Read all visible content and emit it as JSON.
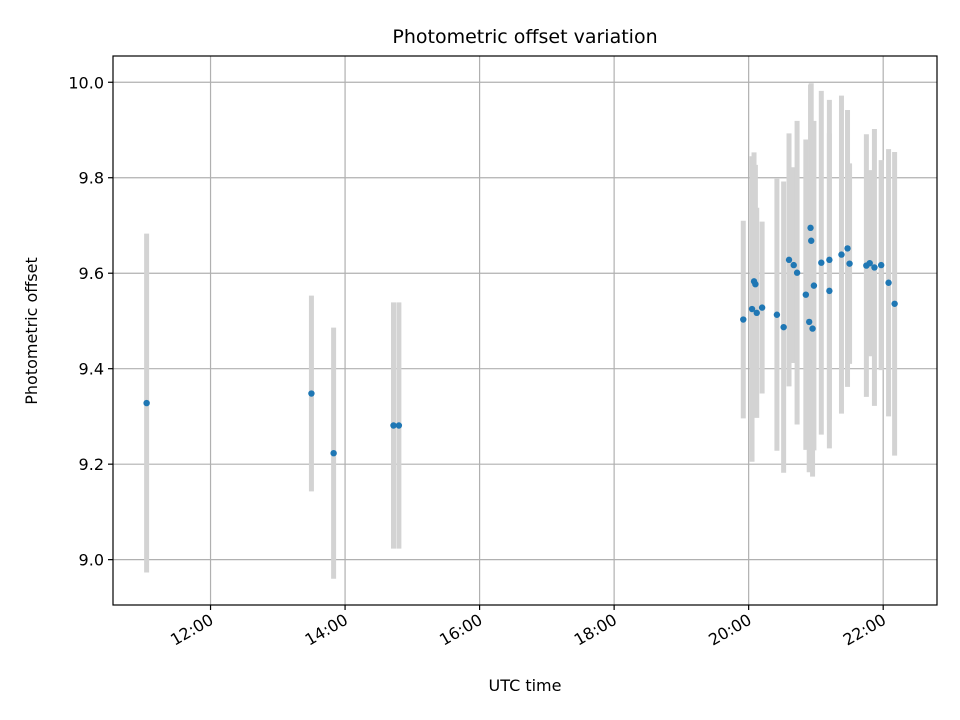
{
  "chart_data": {
    "type": "scatter",
    "title": "Photometric offset variation",
    "xlabel": "UTC time",
    "ylabel": "Photometric offset",
    "x_axis": "time of day (hours, UTC)",
    "xlim": [
      10.55,
      22.8
    ],
    "ylim": [
      8.905,
      10.055
    ],
    "x_ticks": [
      {
        "value": 12,
        "label": "12:00"
      },
      {
        "value": 14,
        "label": "14:00"
      },
      {
        "value": 16,
        "label": "16:00"
      },
      {
        "value": 18,
        "label": "18:00"
      },
      {
        "value": 20,
        "label": "20:00"
      },
      {
        "value": 22,
        "label": "22:00"
      }
    ],
    "y_ticks": [
      {
        "value": 9.0,
        "label": "9.0"
      },
      {
        "value": 9.2,
        "label": "9.2"
      },
      {
        "value": 9.4,
        "label": "9.4"
      },
      {
        "value": 9.6,
        "label": "9.6"
      },
      {
        "value": 9.8,
        "label": "9.8"
      },
      {
        "value": 10.0,
        "label": "10.0"
      }
    ],
    "grid": true,
    "colors": {
      "point": "#1f77b4",
      "errorbar": "#d3d3d3",
      "grid": "#b0b0b0"
    },
    "points": [
      {
        "x": 11.05,
        "y": 9.328,
        "err": 0.355
      },
      {
        "x": 13.5,
        "y": 9.348,
        "err": 0.205
      },
      {
        "x": 13.83,
        "y": 9.223,
        "err": 0.263
      },
      {
        "x": 14.72,
        "y": 9.281,
        "err": 0.258
      },
      {
        "x": 14.8,
        "y": 9.281,
        "err": 0.258
      },
      {
        "x": 19.92,
        "y": 9.503,
        "err": 0.207
      },
      {
        "x": 20.05,
        "y": 9.525,
        "err": 0.32
      },
      {
        "x": 20.08,
        "y": 9.583,
        "err": 0.27
      },
      {
        "x": 20.1,
        "y": 9.577,
        "err": 0.25
      },
      {
        "x": 20.12,
        "y": 9.517,
        "err": 0.22
      },
      {
        "x": 20.2,
        "y": 9.528,
        "err": 0.18
      },
      {
        "x": 20.42,
        "y": 9.513,
        "err": 0.285
      },
      {
        "x": 20.52,
        "y": 9.487,
        "err": 0.305
      },
      {
        "x": 20.6,
        "y": 9.628,
        "err": 0.265
      },
      {
        "x": 20.67,
        "y": 9.617,
        "err": 0.205
      },
      {
        "x": 20.72,
        "y": 9.601,
        "err": 0.318
      },
      {
        "x": 20.85,
        "y": 9.555,
        "err": 0.325
      },
      {
        "x": 20.9,
        "y": 9.498,
        "err": 0.315
      },
      {
        "x": 20.92,
        "y": 9.695,
        "err": 0.3
      },
      {
        "x": 20.93,
        "y": 9.668,
        "err": 0.33
      },
      {
        "x": 20.95,
        "y": 9.484,
        "err": 0.31
      },
      {
        "x": 20.97,
        "y": 9.574,
        "err": 0.345
      },
      {
        "x": 21.08,
        "y": 9.622,
        "err": 0.36
      },
      {
        "x": 21.2,
        "y": 9.628,
        "err": 0.335
      },
      {
        "x": 21.2,
        "y": 9.563,
        "err": 0.33
      },
      {
        "x": 21.38,
        "y": 9.639,
        "err": 0.333
      },
      {
        "x": 21.47,
        "y": 9.652,
        "err": 0.29
      },
      {
        "x": 21.5,
        "y": 9.62,
        "err": 0.21
      },
      {
        "x": 21.75,
        "y": 9.616,
        "err": 0.275
      },
      {
        "x": 21.8,
        "y": 9.621,
        "err": 0.195
      },
      {
        "x": 21.87,
        "y": 9.612,
        "err": 0.29
      },
      {
        "x": 21.97,
        "y": 9.617,
        "err": 0.22
      },
      {
        "x": 22.08,
        "y": 9.58,
        "err": 0.28
      },
      {
        "x": 22.17,
        "y": 9.536,
        "err": 0.318
      }
    ]
  }
}
